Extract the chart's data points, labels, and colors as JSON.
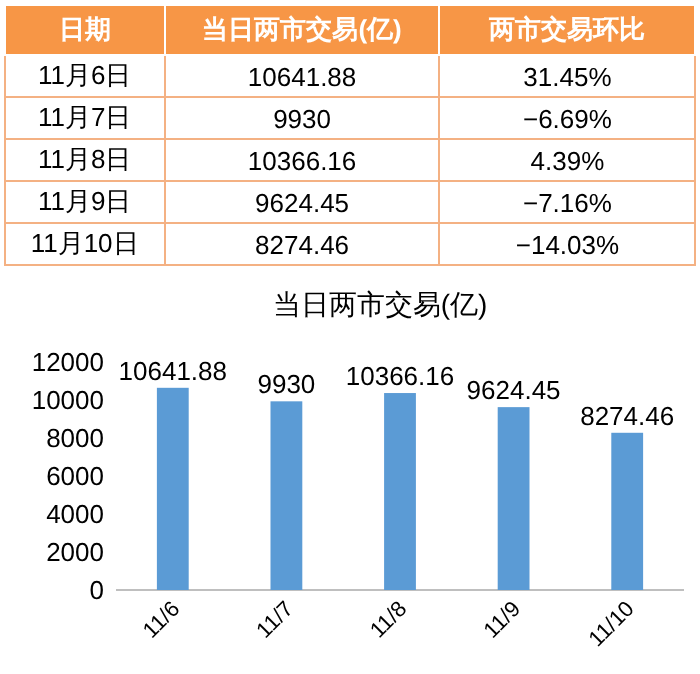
{
  "chart_data": [
    {
      "type": "other",
      "annotations": [
        "日期",
        "当日两市交易(亿)",
        "两市交易环比",
        "11月6日",
        "10641.88",
        "31.45%",
        "11月7日",
        "9930",
        "−6.69%",
        "11月8日",
        "10366.16",
        "4.39%",
        "11月9日",
        "9624.45",
        "−7.16%",
        "11月10日",
        "8274.46",
        "−14.03%"
      ]
    },
    {
      "type": "bar",
      "title": "当日两市交易(亿)",
      "categories": [
        "11/6",
        "11/7",
        "11/8",
        "11/9",
        "11/10"
      ],
      "values": [
        10641.88,
        9930,
        10366.16,
        9624.45,
        8274.46
      ],
      "color": "#5b9bd5",
      "ylim": [
        0,
        12000
      ],
      "yticks": [
        0,
        2000,
        4000,
        6000,
        8000,
        10000,
        12000
      ],
      "data_labels": true,
      "grid": false
    }
  ]
}
